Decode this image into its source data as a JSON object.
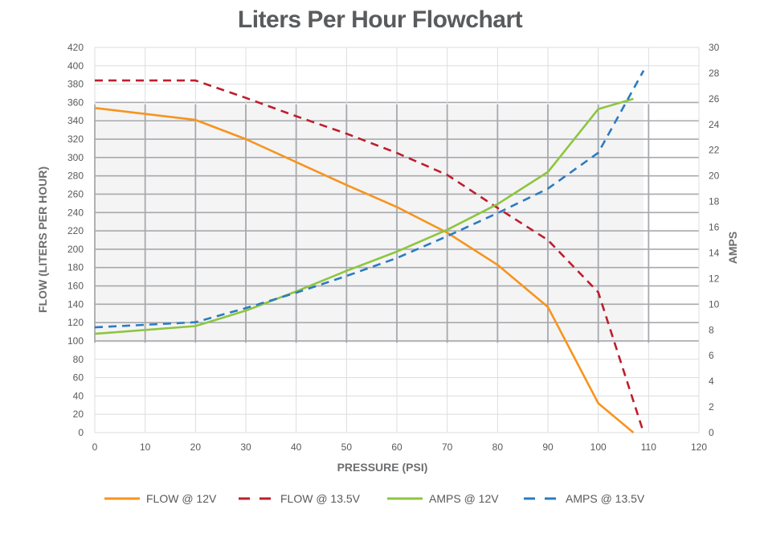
{
  "chart_data": {
    "type": "line",
    "title": "Liters Per Hour Flowchart",
    "xlabel": "PRESSURE (PSI)",
    "ylabel": "FLOW (LITERS PER HOUR)",
    "y2label": "AMPS",
    "xlim": [
      0,
      120
    ],
    "ylim": [
      0,
      420
    ],
    "y2lim": [
      0,
      30
    ],
    "x_ticks": [
      0,
      10,
      20,
      30,
      40,
      50,
      60,
      70,
      80,
      90,
      100,
      110,
      120
    ],
    "y_ticks": [
      0,
      20,
      40,
      60,
      80,
      100,
      120,
      140,
      160,
      180,
      200,
      220,
      240,
      260,
      280,
      300,
      320,
      340,
      360,
      380,
      400,
      420
    ],
    "y2_ticks": [
      0,
      2,
      4,
      6,
      8,
      10,
      12,
      14,
      16,
      18,
      20,
      22,
      24,
      26,
      28,
      30
    ],
    "grid": true,
    "legend_position": "bottom",
    "series": [
      {
        "name": "FLOW @ 12V",
        "axis": "left",
        "color": "#f7941d",
        "dash": false,
        "x": [
          0,
          20,
          30,
          40,
          50,
          60,
          70,
          80,
          90,
          100,
          107
        ],
        "y": [
          354,
          341,
          320,
          295,
          270,
          246,
          218,
          183,
          137,
          32,
          0
        ]
      },
      {
        "name": "FLOW @ 13.5V",
        "axis": "left",
        "color": "#be1e2d",
        "dash": true,
        "x": [
          0,
          20,
          30,
          40,
          50,
          60,
          70,
          80,
          90,
          100,
          109
        ],
        "y": [
          384,
          384,
          365,
          345,
          326,
          305,
          281,
          245,
          210,
          153,
          0
        ]
      },
      {
        "name": "AMPS @ 12V",
        "axis": "right",
        "color": "#8dc63f",
        "dash": false,
        "x": [
          0,
          20,
          30,
          40,
          50,
          60,
          70,
          80,
          90,
          100,
          107
        ],
        "y": [
          7.7,
          8.3,
          9.5,
          11.0,
          12.6,
          14.1,
          15.8,
          17.8,
          20.3,
          25.2,
          26.0
        ]
      },
      {
        "name": "AMPS @ 13.5V",
        "axis": "right",
        "color": "#2b7bc0",
        "dash": true,
        "x": [
          0,
          20,
          30,
          40,
          50,
          60,
          70,
          80,
          90,
          100,
          109
        ],
        "y": [
          8.2,
          8.6,
          9.7,
          10.9,
          12.2,
          13.6,
          15.3,
          17.1,
          19.0,
          21.8,
          28.2
        ]
      }
    ]
  },
  "colors": {
    "title": "#595b5d",
    "grid_light": "#dcdddf",
    "grid_dark": "#a7a9ac"
  }
}
